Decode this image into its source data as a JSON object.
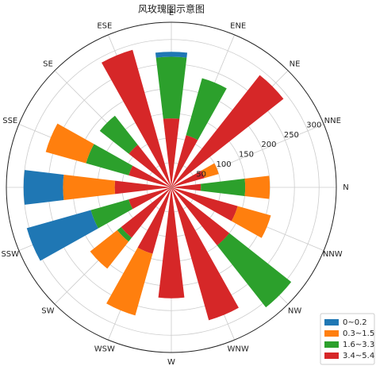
{
  "chart_data": {
    "type": "polar_stacked_bar",
    "title": "风玫瑰图示意图",
    "categories": [
      "N",
      "NNE",
      "NE",
      "ENE",
      "E",
      "ESE",
      "SE",
      "SSE",
      "S",
      "SSW",
      "SW",
      "WSW",
      "W",
      "WNW",
      "NW",
      "NNW"
    ],
    "series": [
      {
        "name": "0~0.2",
        "color": "#1f77b4",
        "values": [
          0,
          0,
          0,
          0,
          10,
          0,
          0,
          0,
          80,
          135,
          0,
          0,
          0,
          0,
          0,
          0
        ]
      },
      {
        "name": "0.3~1.5",
        "color": "#ff7f0e",
        "values": [
          50,
          30,
          0,
          0,
          0,
          0,
          0,
          85,
          105,
          0,
          70,
          130,
          0,
          0,
          0,
          70
        ]
      },
      {
        "name": "1.6~3.3",
        "color": "#2ca02c",
        "values": [
          90,
          0,
          0,
          120,
          125,
          0,
          75,
          90,
          0,
          80,
          10,
          0,
          0,
          0,
          160,
          0
        ]
      },
      {
        "name": "3.4~5.4",
        "color": "#d62728",
        "values": [
          60,
          70,
          290,
          110,
          140,
          290,
          110,
          90,
          115,
          90,
          130,
          140,
          225,
          280,
          150,
          140
        ]
      }
    ],
    "ylim": [
      0,
      335
    ],
    "yticks": [
      50,
      100,
      150,
      200,
      250,
      300
    ],
    "grid": true,
    "legend": "lower right"
  }
}
